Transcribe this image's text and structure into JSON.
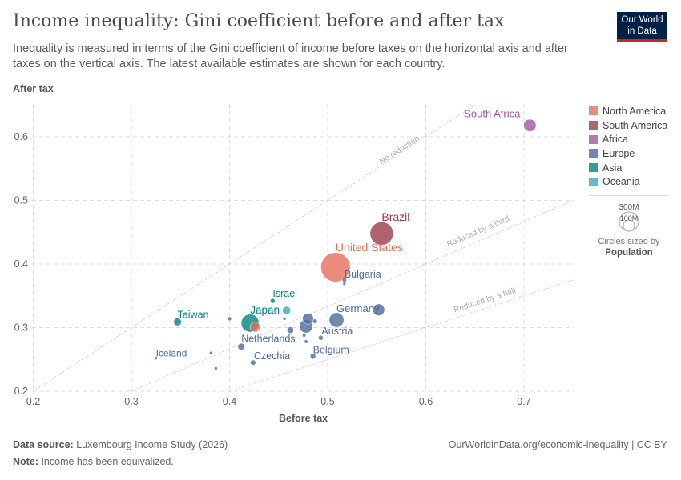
{
  "header": {
    "title": "Income inequality: Gini coefficient before and after tax",
    "subtitle": "Inequality is measured in terms of the Gini coefficient of income before taxes on the horizontal axis and after taxes on the vertical axis. The latest available estimates are shown for each country.",
    "logo": "Our World in Data"
  },
  "footer": {
    "source_label": "Data source:",
    "source": "Luxembourg Income Study (2026)",
    "note_label": "Note:",
    "note": "Income has been equivalized.",
    "url": "OurWorldinData.org/economic-inequality | CC BY"
  },
  "size_legend": {
    "large": "300M",
    "small": "100M",
    "caption": "Circles sized by",
    "variable": "Population"
  },
  "chart_data": {
    "type": "scatter",
    "xlabel": "Before tax",
    "ylabel": "After tax",
    "xlim": [
      0.2,
      0.75
    ],
    "ylim": [
      0.2,
      0.65
    ],
    "xticks": [
      "0.2",
      "0.3",
      "0.4",
      "0.5",
      "0.6",
      "0.7"
    ],
    "yticks": [
      "0.2",
      "0.3",
      "0.4",
      "0.5",
      "0.6"
    ],
    "grid": true,
    "legend_position": "right",
    "reference_lines": [
      {
        "label": "No reduction",
        "slope": 1
      },
      {
        "label": "Reduced by a third",
        "slope": 0.6667
      },
      {
        "label": "Reduced by a half",
        "slope": 0.5
      }
    ],
    "regions": [
      {
        "name": "North America",
        "color": "#e56e5a"
      },
      {
        "name": "South America",
        "color": "#9a3c4a"
      },
      {
        "name": "Africa",
        "color": "#a2559c"
      },
      {
        "name": "Europe",
        "color": "#4c6a9c"
      },
      {
        "name": "Asia",
        "color": "#00847e"
      },
      {
        "name": "Oceania",
        "color": "#38aaba"
      }
    ],
    "points": [
      {
        "label": "South Africa",
        "region": "Africa",
        "x": 0.706,
        "y": 0.618,
        "pop": 60
      },
      {
        "label": "Brazil",
        "region": "South America",
        "x": 0.555,
        "y": 0.448,
        "pop": 210
      },
      {
        "label": "United States",
        "region": "North America",
        "x": 0.508,
        "y": 0.395,
        "pop": 335
      },
      {
        "label": "Bulgaria",
        "region": "Europe",
        "x": 0.517,
        "y": 0.375,
        "pop": 7
      },
      {
        "label": "",
        "region": "Europe",
        "x": 0.517,
        "y": 0.369,
        "pop": 4
      },
      {
        "label": "",
        "region": "Europe",
        "x": 0.552,
        "y": 0.328,
        "pop": 55
      },
      {
        "label": "Germany",
        "region": "Europe",
        "x": 0.509,
        "y": 0.312,
        "pop": 84
      },
      {
        "label": "Israel",
        "region": "Asia",
        "x": 0.444,
        "y": 0.342,
        "pop": 9
      },
      {
        "label": "",
        "region": "Oceania",
        "x": 0.458,
        "y": 0.327,
        "pop": 26
      },
      {
        "label": "Japan",
        "region": "Asia",
        "x": 0.421,
        "y": 0.307,
        "pop": 125
      },
      {
        "label": "",
        "region": "North America",
        "x": 0.426,
        "y": 0.301,
        "pop": 39
      },
      {
        "label": "Taiwan",
        "region": "Asia",
        "x": 0.347,
        "y": 0.309,
        "pop": 23
      },
      {
        "label": "",
        "region": "Europe",
        "x": 0.4,
        "y": 0.314,
        "pop": 6
      },
      {
        "label": "",
        "region": "Europe",
        "x": 0.456,
        "y": 0.314,
        "pop": 3
      },
      {
        "label": "",
        "region": "Europe",
        "x": 0.48,
        "y": 0.314,
        "pop": 48
      },
      {
        "label": "",
        "region": "Europe",
        "x": 0.478,
        "y": 0.302,
        "pop": 68
      },
      {
        "label": "",
        "region": "Europe",
        "x": 0.487,
        "y": 0.31,
        "pop": 8
      },
      {
        "label": "",
        "region": "Europe",
        "x": 0.462,
        "y": 0.296,
        "pop": 17
      },
      {
        "label": "",
        "region": "Europe",
        "x": 0.476,
        "y": 0.288,
        "pop": 5
      },
      {
        "label": "Austria",
        "region": "Europe",
        "x": 0.493,
        "y": 0.284,
        "pop": 9
      },
      {
        "label": "",
        "region": "Europe",
        "x": 0.478,
        "y": 0.278,
        "pop": 5
      },
      {
        "label": "Netherlands",
        "region": "Europe",
        "x": 0.412,
        "y": 0.27,
        "pop": 18
      },
      {
        "label": "Iceland",
        "region": "Europe",
        "x": 0.325,
        "y": 0.252,
        "pop": 0.4
      },
      {
        "label": "",
        "region": "Europe",
        "x": 0.381,
        "y": 0.26,
        "pop": 2
      },
      {
        "label": "",
        "region": "Europe",
        "x": 0.386,
        "y": 0.236,
        "pop": 2
      },
      {
        "label": "Czechia",
        "region": "Europe",
        "x": 0.424,
        "y": 0.245,
        "pop": 11
      },
      {
        "label": "Belgium",
        "region": "Europe",
        "x": 0.485,
        "y": 0.255,
        "pop": 12
      }
    ]
  }
}
